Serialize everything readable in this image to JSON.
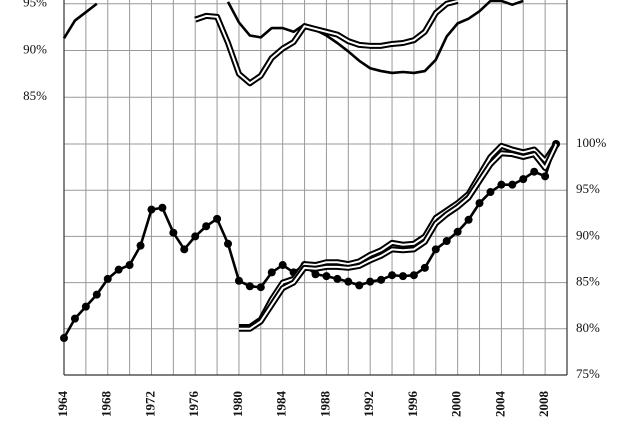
{
  "chart_data": [
    {
      "type": "line",
      "x": [
        1964,
        1965,
        1966,
        1967,
        1968,
        1969,
        1970,
        1971,
        1972,
        1973,
        1974,
        1975,
        1976,
        1977,
        1978,
        1979,
        1980,
        1981,
        1982,
        1983,
        1984,
        1985,
        1986,
        1987,
        1988,
        1989,
        1990,
        1991,
        1992,
        1993,
        1994,
        1995,
        1996,
        1997,
        1998,
        1999,
        2000,
        2001,
        2002,
        2003,
        2004,
        2005,
        2006,
        2007,
        2008,
        2009
      ],
      "xlim": [
        1964,
        2010
      ],
      "ylim": [
        80,
        95.4
      ],
      "yticks": [
        {
          "value": 95,
          "label": "95%"
        },
        {
          "value": 90,
          "label": "90%"
        },
        {
          "value": 85,
          "label": "85%"
        }
      ],
      "y_axis_position": "left",
      "grid": true,
      "series": [
        {
          "style": "solid",
          "color": "#000000",
          "values": [
            91.3,
            93.2,
            94.1,
            95.0,
            null,
            null,
            null,
            null,
            null,
            null,
            null,
            null,
            null,
            null,
            null,
            95.2,
            93.0,
            91.6,
            91.4,
            92.4,
            92.4,
            92.0,
            92.8,
            92.2,
            91.6,
            90.8,
            89.9,
            88.9,
            88.1,
            87.8,
            87.6,
            87.7,
            87.6,
            87.8,
            89.0,
            91.5,
            92.9,
            93.4,
            94.2,
            95.3,
            95.3,
            94.9,
            95.3,
            null,
            null,
            null
          ]
        },
        {
          "style": "double",
          "color": "#000000",
          "values": [
            null,
            null,
            null,
            null,
            null,
            null,
            null,
            null,
            null,
            null,
            null,
            null,
            93.3,
            93.7,
            93.6,
            90.8,
            87.5,
            86.5,
            87.3,
            89.2,
            90.2,
            90.9,
            92.6,
            92.3,
            92.0,
            91.7,
            91.0,
            90.6,
            90.5,
            90.5,
            90.7,
            90.8,
            91.1,
            92.0,
            94.0,
            95.0,
            95.3,
            null,
            null,
            null,
            null,
            null,
            null,
            null,
            null,
            null
          ]
        }
      ]
    },
    {
      "type": "line",
      "x": [
        1964,
        1965,
        1966,
        1967,
        1968,
        1969,
        1970,
        1971,
        1972,
        1973,
        1974,
        1975,
        1976,
        1977,
        1978,
        1979,
        1980,
        1981,
        1982,
        1983,
        1984,
        1985,
        1986,
        1987,
        1988,
        1989,
        1990,
        1991,
        1992,
        1993,
        1994,
        1995,
        1996,
        1997,
        1998,
        1999,
        2000,
        2001,
        2002,
        2003,
        2004,
        2005,
        2006,
        2007,
        2008,
        2009
      ],
      "xlim": [
        1964,
        2010
      ],
      "xticks": [
        1964,
        1968,
        1972,
        1976,
        1980,
        1984,
        1988,
        1992,
        1996,
        2000,
        2004,
        2008
      ],
      "xminorticks": [
        1966,
        1970,
        1974,
        1978,
        1982,
        1986,
        1990,
        1994,
        1998,
        2002,
        2006,
        2010
      ],
      "ylim": [
        75,
        100
      ],
      "yticks": [
        {
          "value": 100,
          "label": "100%"
        },
        {
          "value": 95,
          "label": "95%"
        },
        {
          "value": 90,
          "label": "90%"
        },
        {
          "value": 85,
          "label": "85%"
        },
        {
          "value": 80,
          "label": "80%"
        },
        {
          "value": 75,
          "label": "75%"
        }
      ],
      "y_axis_position": "right",
      "grid": true,
      "series": [
        {
          "style": "dots",
          "color": "#000000",
          "values": [
            79.0,
            81.1,
            82.4,
            83.7,
            85.4,
            86.4,
            86.9,
            89.0,
            92.9,
            93.1,
            90.4,
            88.6,
            90.0,
            91.1,
            91.9,
            89.2,
            85.2,
            84.6,
            84.5,
            86.1,
            86.9,
            86.1,
            86.9,
            85.9,
            85.7,
            85.4,
            85.1,
            84.7,
            85.1,
            85.3,
            85.8,
            85.7,
            85.8,
            86.6,
            88.6,
            89.5,
            90.5,
            91.8,
            93.6,
            94.8,
            95.6,
            95.6,
            96.2,
            97.0,
            96.5,
            100.0
          ]
        },
        {
          "style": "double",
          "color": "#000000",
          "values": [
            null,
            null,
            null,
            null,
            null,
            null,
            null,
            null,
            null,
            null,
            null,
            null,
            null,
            null,
            null,
            null,
            80.2,
            80.2,
            81.0,
            83.2,
            85.0,
            85.4,
            87.0,
            86.9,
            87.2,
            87.2,
            87.0,
            87.3,
            88.0,
            88.5,
            89.3,
            89.1,
            89.2,
            90.0,
            92.0,
            92.8,
            93.6,
            94.6,
            96.6,
            98.6,
            99.8,
            99.4,
            99.1,
            99.4,
            98.2,
            100.0
          ]
        },
        {
          "style": "double",
          "color": "#000000",
          "values": [
            null,
            null,
            null,
            null,
            null,
            null,
            null,
            null,
            null,
            null,
            null,
            null,
            null,
            null,
            null,
            null,
            80.0,
            80.0,
            80.8,
            82.6,
            84.4,
            85.0,
            86.6,
            86.5,
            86.7,
            86.7,
            86.6,
            86.8,
            87.4,
            87.9,
            88.6,
            88.5,
            88.6,
            89.4,
            91.4,
            92.4,
            93.2,
            94.2,
            96.0,
            97.8,
            99.0,
            98.9,
            98.6,
            98.9,
            97.4,
            99.9
          ]
        }
      ]
    }
  ]
}
